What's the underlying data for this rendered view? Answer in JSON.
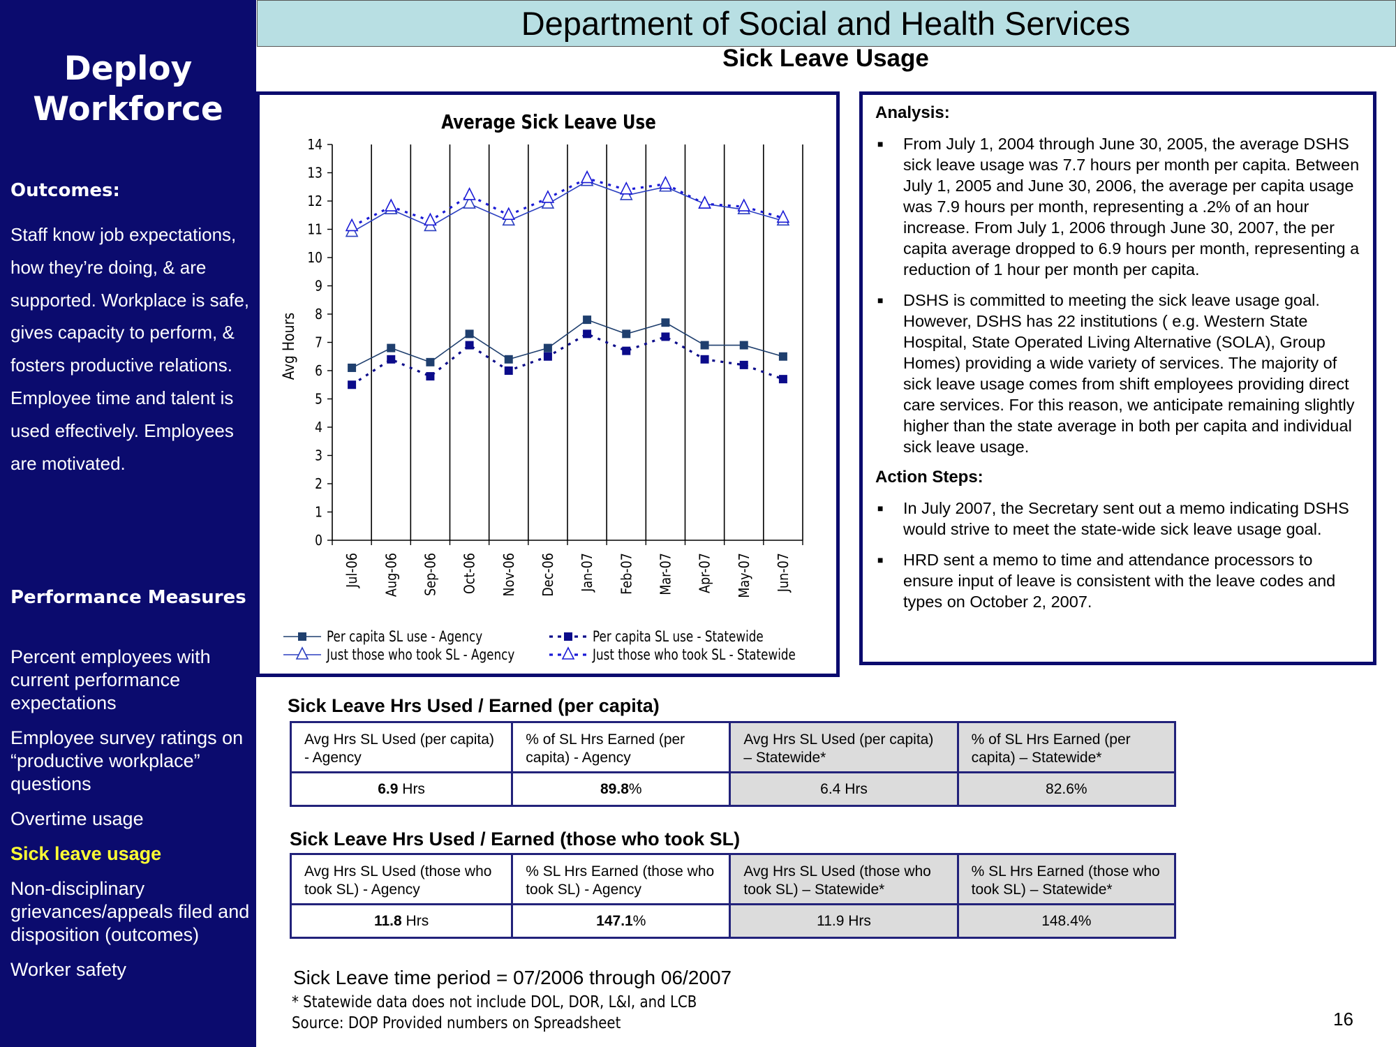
{
  "header": {
    "department": "Department of Social and Health Services",
    "subtitle": "Sick Leave Usage"
  },
  "sidebar": {
    "title_line1": "Deploy",
    "title_line2": "Workforce",
    "outcomes_heading": "Outcomes:",
    "outcomes_text": "Staff know job expectations, how they’re doing, & are supported. Workplace is safe, gives capacity to perform, & fosters productive relations. Employee time and talent is used effectively. Employees are motivated.",
    "performance_heading": "Performance Measures",
    "measures": [
      "Percent employees with current performance expectations",
      "Employee survey ratings on “productive workplace” questions",
      "Overtime usage",
      "Sick leave usage",
      "Non-disciplinary grievances/appeals filed and disposition (outcomes)",
      "Worker safety"
    ],
    "active_measure": "Sick leave usage",
    "background_color": "#0b0b6e",
    "highlight_color": "#ffff33"
  },
  "chart_data": {
    "type": "line",
    "title": "Average Sick Leave Use",
    "xlabel": "",
    "ylabel": "Avg Hours",
    "ylim": [
      0,
      14
    ],
    "yticks": [
      "0",
      "1",
      "2",
      "3",
      "4",
      "5",
      "6",
      "7",
      "8",
      "9",
      "10",
      "11",
      "12",
      "13",
      "14"
    ],
    "categories": [
      "Jul-06",
      "Aug-06",
      "Sep-06",
      "Oct-06",
      "Nov-06",
      "Dec-06",
      "Jan-07",
      "Feb-07",
      "Mar-07",
      "Apr-07",
      "May-07",
      "Jun-07"
    ],
    "series": [
      {
        "name": "Per capita SL use - Agency",
        "values": [
          6.1,
          6.8,
          6.3,
          7.3,
          6.4,
          6.8,
          7.8,
          7.3,
          7.7,
          6.9,
          6.9,
          6.5
        ],
        "color": "#1f3f6e",
        "marker": "square",
        "line": "solid"
      },
      {
        "name": "Per capita SL use - Statewide",
        "values": [
          5.5,
          6.4,
          5.8,
          6.9,
          6.0,
          6.5,
          7.3,
          6.7,
          7.2,
          6.4,
          6.2,
          5.7
        ],
        "color": "#0b0b8a",
        "marker": "square",
        "line": "dashed"
      },
      {
        "name": "Just those who took SL - Agency",
        "values": [
          10.9,
          11.7,
          11.1,
          11.9,
          11.3,
          11.9,
          12.7,
          12.2,
          12.5,
          11.9,
          11.7,
          11.3
        ],
        "color": "#2b3fc0",
        "marker": "triangle",
        "line": "solid"
      },
      {
        "name": "Just those who took SL - Statewide",
        "values": [
          11.1,
          11.8,
          11.3,
          12.2,
          11.5,
          12.1,
          12.8,
          12.4,
          12.6,
          11.9,
          11.8,
          11.4
        ],
        "color": "#1a1ad6",
        "marker": "triangle",
        "line": "dashed"
      }
    ],
    "grid": "vertical",
    "legend_position": "bottom"
  },
  "analysis": {
    "heading": "Analysis:",
    "bullets": [
      "From July 1, 2004 through June 30, 2005, the average DSHS sick leave usage was 7.7 hours per month per capita. Between July 1, 2005 and June 30, 2006, the average per capita usage was 7.9 hours per month, representing a .2% of an hour increase. From July 1, 2006 through June 30, 2007, the per capita average dropped to 6.9 hours per month, representing a reduction of 1 hour per month per capita.",
      "DSHS is committed to meeting the sick leave usage goal. However, DSHS has 22 institutions ( e.g. Western State Hospital, State Operated Living Alternative (SOLA), Group Homes) providing a wide variety of services. The majority of  sick leave usage comes from shift employees providing direct care services. For this reason, we anticipate remaining slightly higher than the state average in both per capita and individual sick leave usage."
    ],
    "action_heading": "Action Steps:",
    "action_bullets": [
      "In July 2007, the Secretary sent out a memo indicating DSHS would strive to meet the state-wide sick leave usage goal.",
      "HRD sent a memo to time and attendance processors to ensure input of leave is consistent with the leave codes and types on October 2, 2007."
    ],
    "bullet_glyph": "■"
  },
  "table_per_capita": {
    "title": "Sick Leave Hrs Used / Earned (per capita)",
    "headers": [
      "Avg Hrs SL Used (per capita) - Agency",
      "% of SL Hrs Earned (per capita) - Agency",
      "Avg Hrs SL Used (per capita) – Statewide*",
      "% of SL Hrs Earned (per capita) – Statewide*"
    ],
    "values": [
      {
        "num": "6.9",
        "unit": " Hrs"
      },
      {
        "num": "89.8",
        "unit": "%"
      },
      {
        "num": "6.4 Hrs",
        "unit": ""
      },
      {
        "num": "82.6%",
        "unit": ""
      }
    ]
  },
  "table_took_sl": {
    "title": "Sick Leave Hrs Used / Earned (those who took SL)",
    "headers": [
      "Avg Hrs SL Used (those who took SL) - Agency",
      "% SL Hrs Earned (those who took SL) - Agency",
      "Avg Hrs SL Used (those who took SL) – Statewide*",
      "% SL Hrs Earned (those who took SL) – Statewide*"
    ],
    "values": [
      {
        "num": "11.8",
        "unit": " Hrs"
      },
      {
        "num": "147.1",
        "unit": "%"
      },
      {
        "num": "11.9 Hrs",
        "unit": ""
      },
      {
        "num": "148.4%",
        "unit": ""
      }
    ]
  },
  "footer": {
    "period": "Sick Leave time period = 07/2006 through 06/2007",
    "note": "* Statewide data does not include DOL, DOR, L&I, and LCB",
    "source": "Source: DOP Provided numbers on Spreadsheet",
    "page_number": "16"
  }
}
